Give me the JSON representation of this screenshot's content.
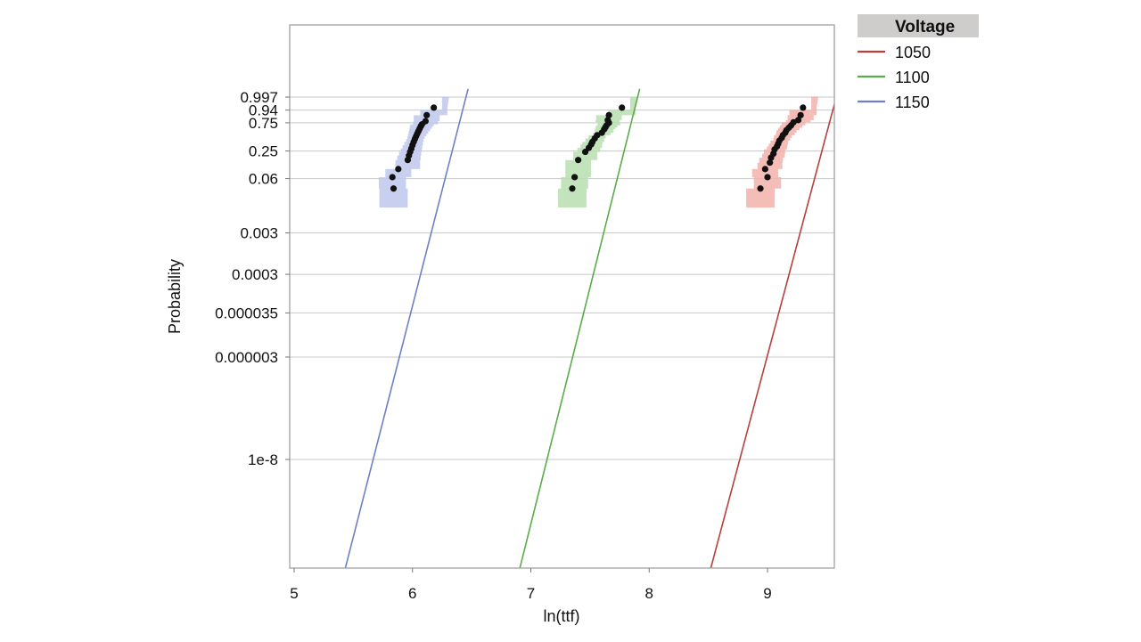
{
  "chart_data": {
    "type": "scatter",
    "xlabel": "ln(ttf)",
    "ylabel": "Probability",
    "xlim": [
      5,
      9.6
    ],
    "x_ticks": [
      5,
      6,
      7,
      8,
      9
    ],
    "y_scale": "weibull-probability",
    "y_ticks": [
      "0.997",
      "0.94",
      "0.75",
      "0.25",
      "0.06",
      "0.003",
      "0.0003",
      "0.000035",
      "0.000003",
      "1e-8"
    ],
    "y_tick_values": [
      0.997,
      0.94,
      0.75,
      0.25,
      0.06,
      0.003,
      0.0003,
      3.5e-05,
      3e-06,
      1e-08
    ],
    "grid": true,
    "legend": {
      "title": "Voltage",
      "placement": "right-top",
      "entries": [
        "1050",
        "1100",
        "1150"
      ]
    },
    "series": [
      {
        "name": "1050",
        "color": "#b5403c",
        "band_color": "#f2b1aa",
        "fit_line": [
          [
            8.3,
            1e-13
          ],
          [
            9.6,
            0.9999
          ]
        ],
        "points": [
          [
            8.94,
            0.035
          ],
          [
            9.0,
            0.065
          ],
          [
            8.98,
            0.1
          ],
          [
            9.02,
            0.14
          ],
          [
            9.03,
            0.18
          ],
          [
            9.05,
            0.22
          ],
          [
            9.06,
            0.27
          ],
          [
            9.08,
            0.31
          ],
          [
            9.09,
            0.35
          ],
          [
            9.1,
            0.4
          ],
          [
            9.12,
            0.45
          ],
          [
            9.13,
            0.5
          ],
          [
            9.15,
            0.55
          ],
          [
            9.16,
            0.6
          ],
          [
            9.18,
            0.65
          ],
          [
            9.2,
            0.7
          ],
          [
            9.22,
            0.76
          ],
          [
            9.26,
            0.8
          ],
          [
            9.28,
            0.88
          ],
          [
            9.3,
            0.96
          ]
        ]
      },
      {
        "name": "1100",
        "color": "#5aab4a",
        "band_color": "#b7deb0",
        "fit_line": [
          [
            6.7,
            1e-13
          ],
          [
            7.92,
            0.9999
          ]
        ],
        "points": [
          [
            7.35,
            0.035
          ],
          [
            7.37,
            0.065
          ],
          [
            7.4,
            0.16
          ],
          [
            7.46,
            0.24
          ],
          [
            7.49,
            0.29
          ],
          [
            7.51,
            0.34
          ],
          [
            7.52,
            0.38
          ],
          [
            7.54,
            0.44
          ],
          [
            7.56,
            0.5
          ],
          [
            7.6,
            0.55
          ],
          [
            7.62,
            0.62
          ],
          [
            7.63,
            0.66
          ],
          [
            7.64,
            0.7
          ],
          [
            7.66,
            0.75
          ],
          [
            7.65,
            0.8
          ],
          [
            7.66,
            0.88
          ],
          [
            7.77,
            0.96
          ]
        ]
      },
      {
        "name": "1150",
        "color": "#6e80c4",
        "band_color": "#c0c8ec",
        "fit_line": [
          [
            5.22,
            1e-13
          ],
          [
            6.47,
            0.9999
          ]
        ],
        "points": [
          [
            5.84,
            0.035
          ],
          [
            5.83,
            0.065
          ],
          [
            5.88,
            0.1
          ],
          [
            5.96,
            0.16
          ],
          [
            5.97,
            0.2
          ],
          [
            5.98,
            0.24
          ],
          [
            5.99,
            0.28
          ],
          [
            6.0,
            0.33
          ],
          [
            6.01,
            0.38
          ],
          [
            6.02,
            0.43
          ],
          [
            6.03,
            0.48
          ],
          [
            6.04,
            0.53
          ],
          [
            6.05,
            0.58
          ],
          [
            6.06,
            0.63
          ],
          [
            6.07,
            0.68
          ],
          [
            6.08,
            0.72
          ],
          [
            6.11,
            0.78
          ],
          [
            6.12,
            0.88
          ],
          [
            6.18,
            0.96
          ]
        ]
      }
    ]
  }
}
